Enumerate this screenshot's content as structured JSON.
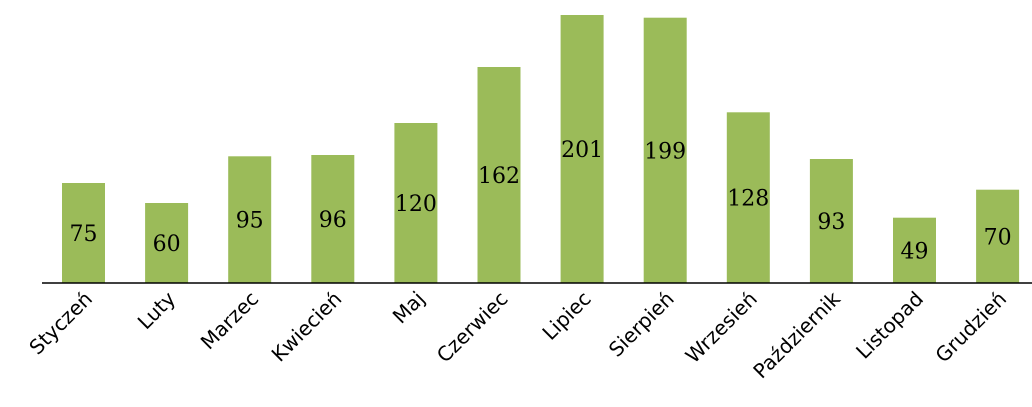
{
  "chart_data": {
    "type": "bar",
    "categories": [
      "Styczeń",
      "Luty",
      "Marzec",
      "Kwiecień",
      "Maj",
      "Czerwiec",
      "Lipiec",
      "Sierpień",
      "Wrzesień",
      "Październik",
      "Listopad",
      "Grudzień"
    ],
    "values": [
      75,
      60,
      95,
      96,
      120,
      162,
      201,
      199,
      128,
      93,
      49,
      70
    ],
    "title": "",
    "xlabel": "",
    "ylabel": "",
    "ylim": [
      0,
      201
    ],
    "grid": false,
    "data_labels": true,
    "colors": {
      "bar": "#9BBB59",
      "axis": "#000000"
    }
  }
}
